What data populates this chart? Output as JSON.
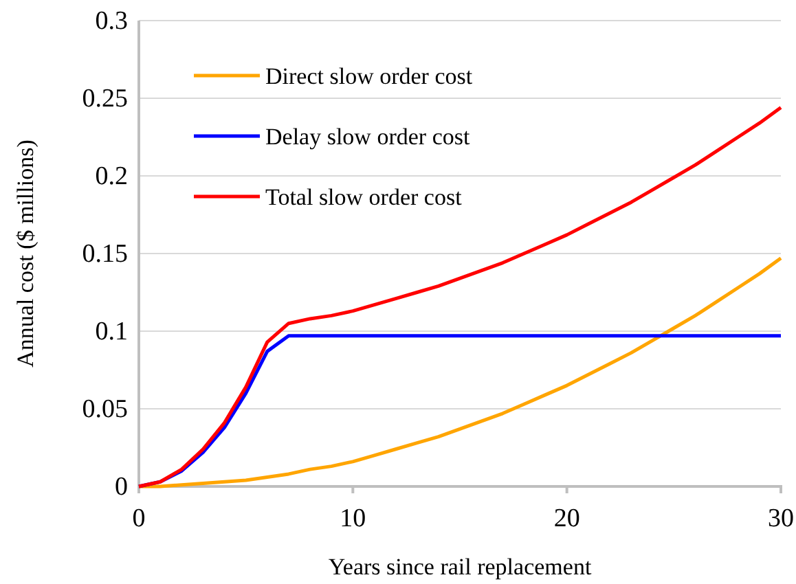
{
  "chart_data": {
    "type": "line",
    "xlabel": "Years since rail replacement",
    "ylabel": "Annual cost ($ millions)",
    "x": [
      0,
      1,
      2,
      3,
      4,
      5,
      6,
      7,
      8,
      9,
      10,
      11,
      12,
      13,
      14,
      15,
      16,
      17,
      18,
      19,
      20,
      21,
      22,
      23,
      24,
      25,
      26,
      27,
      28,
      29,
      30
    ],
    "series": [
      {
        "name": "Direct slow order cost",
        "color": "#ffa500",
        "values": [
          0,
          0,
          0.001,
          0.002,
          0.003,
          0.004,
          0.006,
          0.008,
          0.011,
          0.013,
          0.016,
          0.02,
          0.024,
          0.028,
          0.032,
          0.037,
          0.042,
          0.047,
          0.053,
          0.059,
          0.065,
          0.072,
          0.079,
          0.086,
          0.094,
          0.102,
          0.11,
          0.119,
          0.128,
          0.137,
          0.147
        ]
      },
      {
        "name": "Delay slow order cost",
        "color": "#0000ff",
        "values": [
          0,
          0.003,
          0.01,
          0.022,
          0.038,
          0.06,
          0.087,
          0.097,
          0.097,
          0.097,
          0.097,
          0.097,
          0.097,
          0.097,
          0.097,
          0.097,
          0.097,
          0.097,
          0.097,
          0.097,
          0.097,
          0.097,
          0.097,
          0.097,
          0.097,
          0.097,
          0.097,
          0.097,
          0.097,
          0.097,
          0.097
        ]
      },
      {
        "name": "Total slow order cost",
        "color": "#ff0000",
        "values": [
          0,
          0.003,
          0.011,
          0.024,
          0.041,
          0.064,
          0.093,
          0.105,
          0.108,
          0.11,
          0.113,
          0.117,
          0.121,
          0.125,
          0.129,
          0.134,
          0.139,
          0.144,
          0.15,
          0.156,
          0.162,
          0.169,
          0.176,
          0.183,
          0.191,
          0.199,
          0.207,
          0.216,
          0.225,
          0.234,
          0.244
        ]
      }
    ],
    "xlim": [
      0,
      30
    ],
    "xticks": [
      0,
      10,
      20,
      30
    ],
    "ylim": [
      0,
      0.3
    ],
    "yticks": [
      0,
      0.05,
      0.1,
      0.15,
      0.2,
      0.25,
      0.3
    ],
    "grid": "y",
    "legend": "top left",
    "marker": "none",
    "line_style": "solid"
  }
}
